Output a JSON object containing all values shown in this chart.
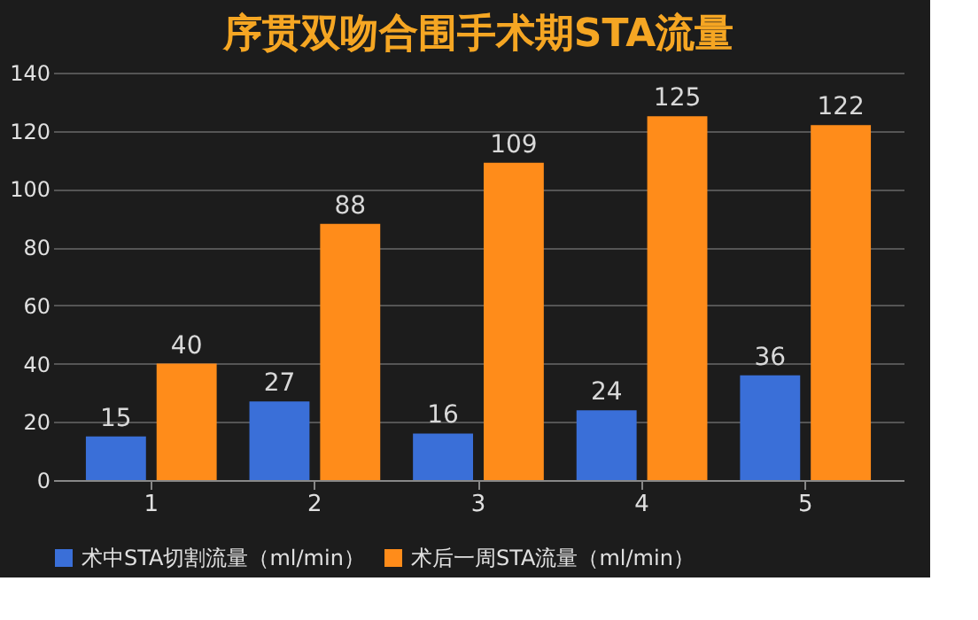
{
  "chart_data": {
    "type": "bar",
    "title": "序贯双吻合围手术期STA流量",
    "categories": [
      "1",
      "2",
      "3",
      "4",
      "5"
    ],
    "series": [
      {
        "name": "术中STA切割流量（ml/min）",
        "color": "#3a6fd8",
        "values": [
          15,
          27,
          16,
          24,
          36
        ]
      },
      {
        "name": "术后一周STA流量（ml/min）",
        "color": "#ff8c1a",
        "values": [
          40,
          88,
          109,
          125,
          122
        ]
      }
    ],
    "ylim": [
      0,
      140
    ],
    "yticks": [
      0,
      20,
      40,
      60,
      80,
      100,
      120,
      140
    ],
    "grid": "y",
    "legend": "bottom",
    "data_labels": true
  }
}
